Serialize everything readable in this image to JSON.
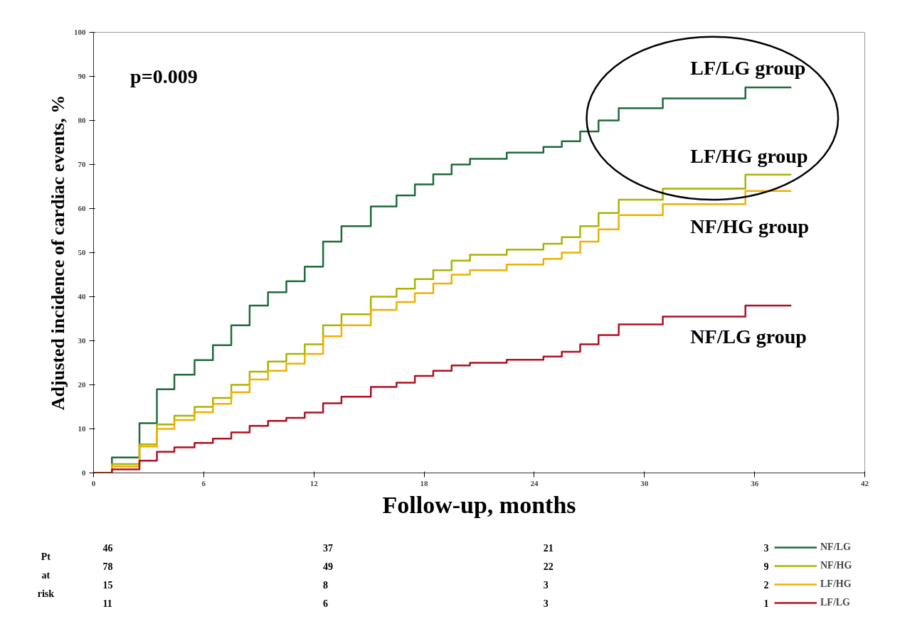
{
  "chart_data": {
    "type": "step",
    "xlabel": "Follow-up, months",
    "ylabel": "Adjusted incidence of cardiac events, %",
    "x": [
      0,
      1,
      2.5,
      3.45,
      4.4,
      5.5,
      6.5,
      7.5,
      8.5,
      9.5,
      10.5,
      11.5,
      12.5,
      13.5,
      15.1,
      16.5,
      17.5,
      18.5,
      19.5,
      20.5,
      22.5,
      24.5,
      25.5,
      26.5,
      27.5,
      28.6,
      31,
      35.5,
      38
    ],
    "series": [
      {
        "name": "NF/LG",
        "color": "#1e6b3a",
        "values": [
          0,
          3.5,
          11.3,
          19,
          22.3,
          25.6,
          29,
          33.5,
          38,
          41,
          43.5,
          46.8,
          52.5,
          56,
          60.5,
          63,
          65.5,
          67.8,
          70,
          71.3,
          72.7,
          74,
          75.3,
          77.5,
          80,
          82.8,
          85,
          87.5,
          87.5
        ]
      },
      {
        "name": "NF/HG",
        "color": "#a8b400",
        "values": [
          0,
          2,
          6.5,
          11,
          13,
          15,
          17,
          20,
          23,
          25.3,
          27,
          29.2,
          33.5,
          36,
          40,
          41.8,
          44,
          46,
          48.2,
          49.5,
          50.7,
          52,
          53.5,
          56,
          59,
          62,
          64.5,
          67.7,
          67.7
        ]
      },
      {
        "name": "LF/HG",
        "color": "#f0b000",
        "values": [
          0,
          1.5,
          6,
          10,
          12,
          13.8,
          15.7,
          18.3,
          21.2,
          23.2,
          24.8,
          27,
          31,
          33.5,
          37,
          38.8,
          40.8,
          43,
          45,
          46,
          47.3,
          48.6,
          50,
          52.5,
          55.3,
          58.5,
          61,
          64,
          64
        ]
      },
      {
        "name": "LF/LG",
        "color": "#b01020",
        "values": [
          0,
          0.8,
          2.8,
          4.8,
          5.8,
          6.8,
          7.8,
          9.2,
          10.7,
          11.8,
          12.5,
          13.7,
          15.8,
          17.3,
          19.5,
          20.5,
          22,
          23.2,
          24.4,
          25,
          25.7,
          26.4,
          27.5,
          29.2,
          31.3,
          33.7,
          35.5,
          38,
          38
        ]
      }
    ],
    "xlim": [
      0,
      42
    ],
    "xticks": [
      0,
      6,
      12,
      18,
      24,
      30,
      36,
      42
    ],
    "ylim": [
      0,
      100
    ],
    "yticks": [
      0,
      10,
      20,
      30,
      40,
      50,
      60,
      70,
      80,
      90,
      100
    ],
    "grid": false,
    "legend": "bottom right",
    "annotations": [
      "p=0.009",
      "LF/LG group",
      "LF/HG group",
      "NF/HG group",
      "NF/LG group",
      "Pt at risk",
      "46",
      "37",
      "21",
      "3",
      "78",
      "49",
      "22",
      "9",
      "15",
      "8",
      "3",
      "2",
      "11",
      "6",
      "3",
      "1"
    ]
  }
}
